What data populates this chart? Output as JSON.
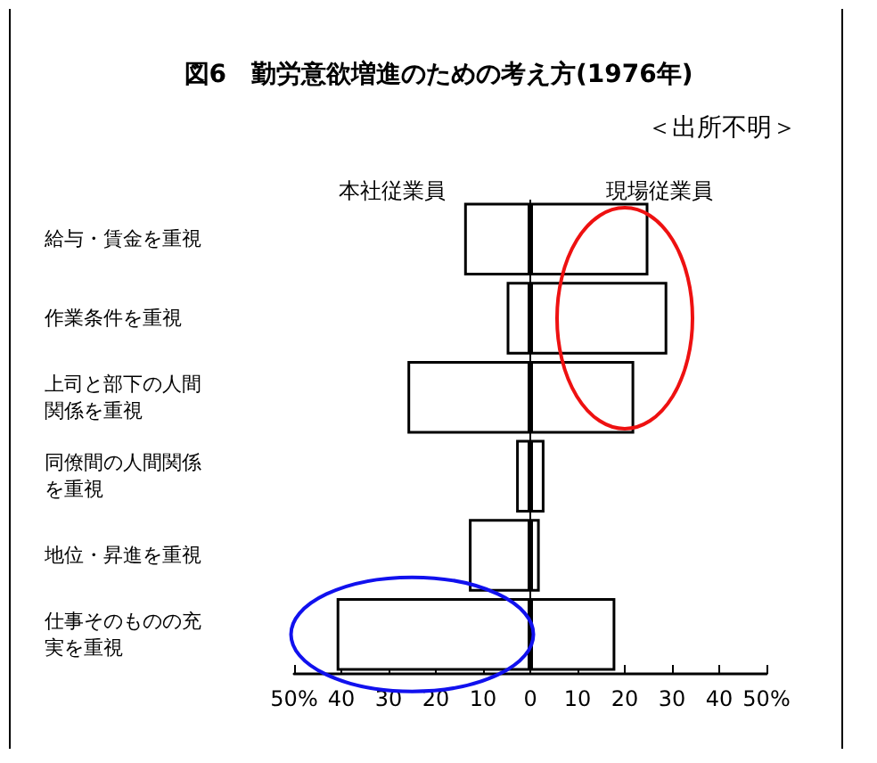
{
  "chart_data": {
    "type": "bar",
    "orientation": "horizontal",
    "title": "図6　勤労意欲増進のための考え方(1976年)",
    "annotations": [
      "＜出所不明＞"
    ],
    "categories": [
      "給与・賃金を重視",
      "作業条件を重視",
      "上司と部下の人間関係を重視",
      "同僚間の人間関係を重視",
      "地位・昇進を重視",
      "仕事そのものの充実を重視"
    ],
    "series": [
      {
        "name": "本社従業員",
        "color": "#ffffff",
        "values": [
          -14,
          -5,
          -26,
          -3,
          -13,
          -41
        ]
      },
      {
        "name": "現場従業員",
        "color": "#ffffff",
        "values": [
          25,
          29,
          22,
          3,
          2,
          18
        ]
      }
    ],
    "xlim": [
      -50,
      50
    ],
    "xticks": [
      {
        "value": -50,
        "label": "50%"
      },
      {
        "value": -40,
        "label": "40"
      },
      {
        "value": -30,
        "label": "30"
      },
      {
        "value": -20,
        "label": "20"
      },
      {
        "value": -10,
        "label": "10"
      },
      0,
      10,
      20,
      30,
      40,
      {
        "value": 50,
        "label": "50%"
      }
    ],
    "stacked": true,
    "ref_lines": [
      {
        "axis": "x",
        "value": 0
      }
    ],
    "grid": false,
    "legend": "top"
  }
}
